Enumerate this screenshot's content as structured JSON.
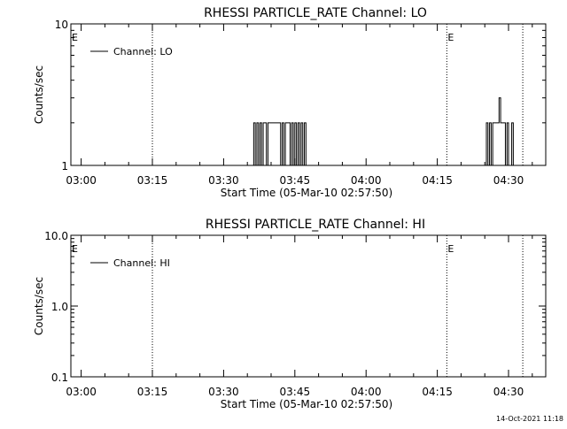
{
  "footer": {
    "timestamp": "14-Oct-2021 11:18"
  },
  "chart_data": [
    {
      "type": "line",
      "title": "RHESSI PARTICLE_RATE Channel: LO",
      "xlabel": "Start Time (05-Mar-10 02:57:50)",
      "ylabel": "Counts/sec",
      "yscale": "log",
      "ylim": [
        1,
        10
      ],
      "y_tick_labels": [
        "1",
        "10"
      ],
      "y_tick_values": [
        1,
        10
      ],
      "x_tick_labels": [
        "03:00",
        "03:15",
        "03:30",
        "03:45",
        "04:00",
        "04:15",
        "04:30"
      ],
      "x_tick_values": [
        "03:00",
        "03:15",
        "03:30",
        "03:45",
        "04:00",
        "04:15",
        "04:30"
      ],
      "xlim": [
        "02:57:50",
        "04:37:50"
      ],
      "legend": {
        "entry": "Channel: LO",
        "placement": "top-left"
      },
      "event_markers": [
        {
          "time": "03:15",
          "label": ""
        },
        {
          "time": "04:17",
          "label": "E"
        },
        {
          "time": "04:33",
          "label": ""
        }
      ],
      "left_edge_marker_label": "E",
      "series": [
        {
          "name": "Channel: LO",
          "x": [
            "03:36:00",
            "03:36:20",
            "03:36:40",
            "03:37:00",
            "03:37:20",
            "03:37:40",
            "03:38:00",
            "03:38:20",
            "03:38:40",
            "03:39:00",
            "03:39:20",
            "03:39:40",
            "03:40:00",
            "03:40:20",
            "03:40:40",
            "03:41:00",
            "03:41:20",
            "03:41:40",
            "03:42:00",
            "03:42:20",
            "03:42:40",
            "03:43:00",
            "03:43:20",
            "03:43:40",
            "03:44:00",
            "03:44:20",
            "03:44:40",
            "03:45:00",
            "03:45:20",
            "03:45:40",
            "03:46:00",
            "03:46:20",
            "03:46:40",
            "03:47:00",
            "03:47:20",
            "04:25:00",
            "04:25:20",
            "04:25:40",
            "04:26:00",
            "04:26:20",
            "04:26:40",
            "04:27:00",
            "04:27:20",
            "04:27:40",
            "04:28:00",
            "04:28:20",
            "04:28:40",
            "04:29:00",
            "04:29:20",
            "04:29:40",
            "04:30:00",
            "04:30:20",
            "04:30:40",
            "04:31:00",
            "04:31:20"
          ],
          "y": [
            1,
            2,
            1,
            2,
            1,
            2,
            1,
            2,
            2,
            1,
            2,
            2,
            2,
            2,
            2,
            2,
            2,
            2,
            1,
            2,
            1,
            2,
            2,
            2,
            1,
            2,
            1,
            2,
            1,
            2,
            1,
            2,
            1,
            2,
            1,
            1,
            2,
            1,
            2,
            1,
            2,
            2,
            2,
            2,
            3,
            2,
            2,
            2,
            1,
            2,
            1,
            1,
            2,
            1,
            1
          ]
        }
      ]
    },
    {
      "type": "line",
      "title": "RHESSI PARTICLE_RATE Channel: HI",
      "xlabel": "Start Time (05-Mar-10 02:57:50)",
      "ylabel": "Counts/sec",
      "yscale": "log",
      "ylim": [
        0.1,
        10
      ],
      "y_tick_labels": [
        "0.1",
        "1.0",
        "10.0"
      ],
      "y_tick_values": [
        0.1,
        1,
        10
      ],
      "x_tick_labels": [
        "03:00",
        "03:15",
        "03:30",
        "03:45",
        "04:00",
        "04:15",
        "04:30"
      ],
      "x_tick_values": [
        "03:00",
        "03:15",
        "03:30",
        "03:45",
        "04:00",
        "04:15",
        "04:30"
      ],
      "xlim": [
        "02:57:50",
        "04:37:50"
      ],
      "legend": {
        "entry": "Channel: HI",
        "placement": "top-left"
      },
      "event_markers": [
        {
          "time": "03:15",
          "label": ""
        },
        {
          "time": "04:17",
          "label": "E"
        },
        {
          "time": "04:33",
          "label": ""
        }
      ],
      "left_edge_marker_label": "E",
      "series": [
        {
          "name": "Channel: HI",
          "x": [],
          "y": []
        }
      ]
    }
  ]
}
